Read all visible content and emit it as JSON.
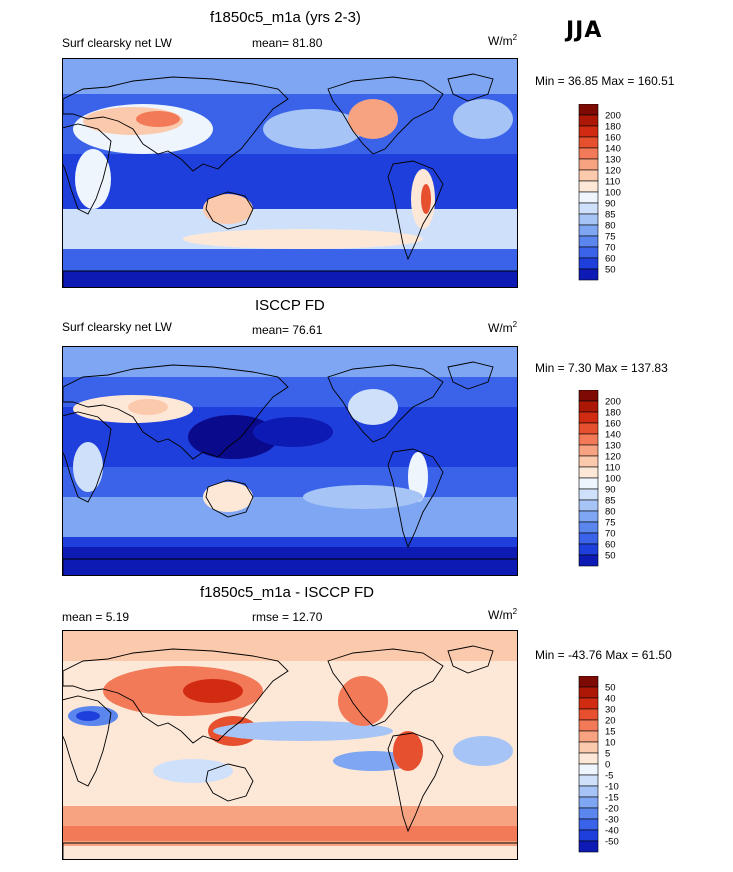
{
  "season": "JJA",
  "colors": {
    "abs_scale": [
      "#0a0a8c",
      "#0d1bb4",
      "#1e3fdc",
      "#3a63ea",
      "#5a86ee",
      "#7ea6f2",
      "#a6c4f6",
      "#cfe0fa",
      "#eef5fd",
      "#fde8d8",
      "#fbc9ac",
      "#f7a382",
      "#f27a58",
      "#e6502f",
      "#d12c12",
      "#ad1705",
      "#7d0a03"
    ],
    "diff_scale": [
      "#0a0a8c",
      "#0d1bb4",
      "#1e3fdc",
      "#3a63ea",
      "#5a86ee",
      "#7ea6f2",
      "#a6c4f6",
      "#cfe0fa",
      "#eef5fd",
      "#fde8d8",
      "#fbc9ac",
      "#f7a382",
      "#f27a58",
      "#e6502f",
      "#d12c12",
      "#ad1705",
      "#7d0a03"
    ]
  },
  "chart_data": [
    {
      "type": "heatmap",
      "title": "f1850c5_m1a (yrs 2-3)",
      "left_label": "Surf clearsky net LW",
      "stat_text": "mean=  81.80",
      "mean": 81.8,
      "units_base": "W/m",
      "units_sup": "2",
      "min": 36.85,
      "max": 160.51,
      "minmax_text": "Min =  36.85 Max = 160.51",
      "levels": [
        "200",
        "180",
        "160",
        "140",
        "130",
        "120",
        "110",
        "100",
        "90",
        "85",
        "80",
        "75",
        "70",
        "60",
        "50"
      ],
      "dominant": "mostly 50-90 over oceans; 110-160 over Sahara, Arabia, western US, Andes; 100-120 over Australia and subtropical oceans"
    },
    {
      "type": "heatmap",
      "title": "ISCCP FD",
      "left_label": "Surf clearsky net LW",
      "stat_text": "mean=  76.61",
      "mean": 76.61,
      "units_base": "W/m",
      "units_sup": "2",
      "min": 7.3,
      "max": 137.83,
      "minmax_text": "Min =   7.30 Max = 137.83",
      "levels": [
        "200",
        "180",
        "160",
        "140",
        "130",
        "120",
        "110",
        "100",
        "90",
        "85",
        "80",
        "75",
        "70",
        "60",
        "50"
      ],
      "dominant": "mostly 50-85 over oceans with <50 in western Pacific warm pool and Antarctic; 100-130 over Sahara and Australia"
    },
    {
      "type": "heatmap",
      "title": "f1850c5_m1a - ISCCP FD",
      "left_label": "mean =   5.19",
      "stat_text": "rmse =  12.70",
      "mean": 5.19,
      "rmse": 12.7,
      "units_base": "W/m",
      "units_sup": "2",
      "min": -43.76,
      "max": 61.5,
      "minmax_text": "Min = -43.76 Max =  61.50",
      "levels": [
        "50",
        "40",
        "30",
        "20",
        "15",
        "10",
        "5",
        "0",
        "-5",
        "-10",
        "-15",
        "-20",
        "-30",
        "-40",
        "-50"
      ],
      "dominant": "positive (10-40) over Asia, Maritime Continent, Southern Ocean, western US; negative (-10 to -30) over Sahara, eastern tropical Pacific"
    }
  ]
}
